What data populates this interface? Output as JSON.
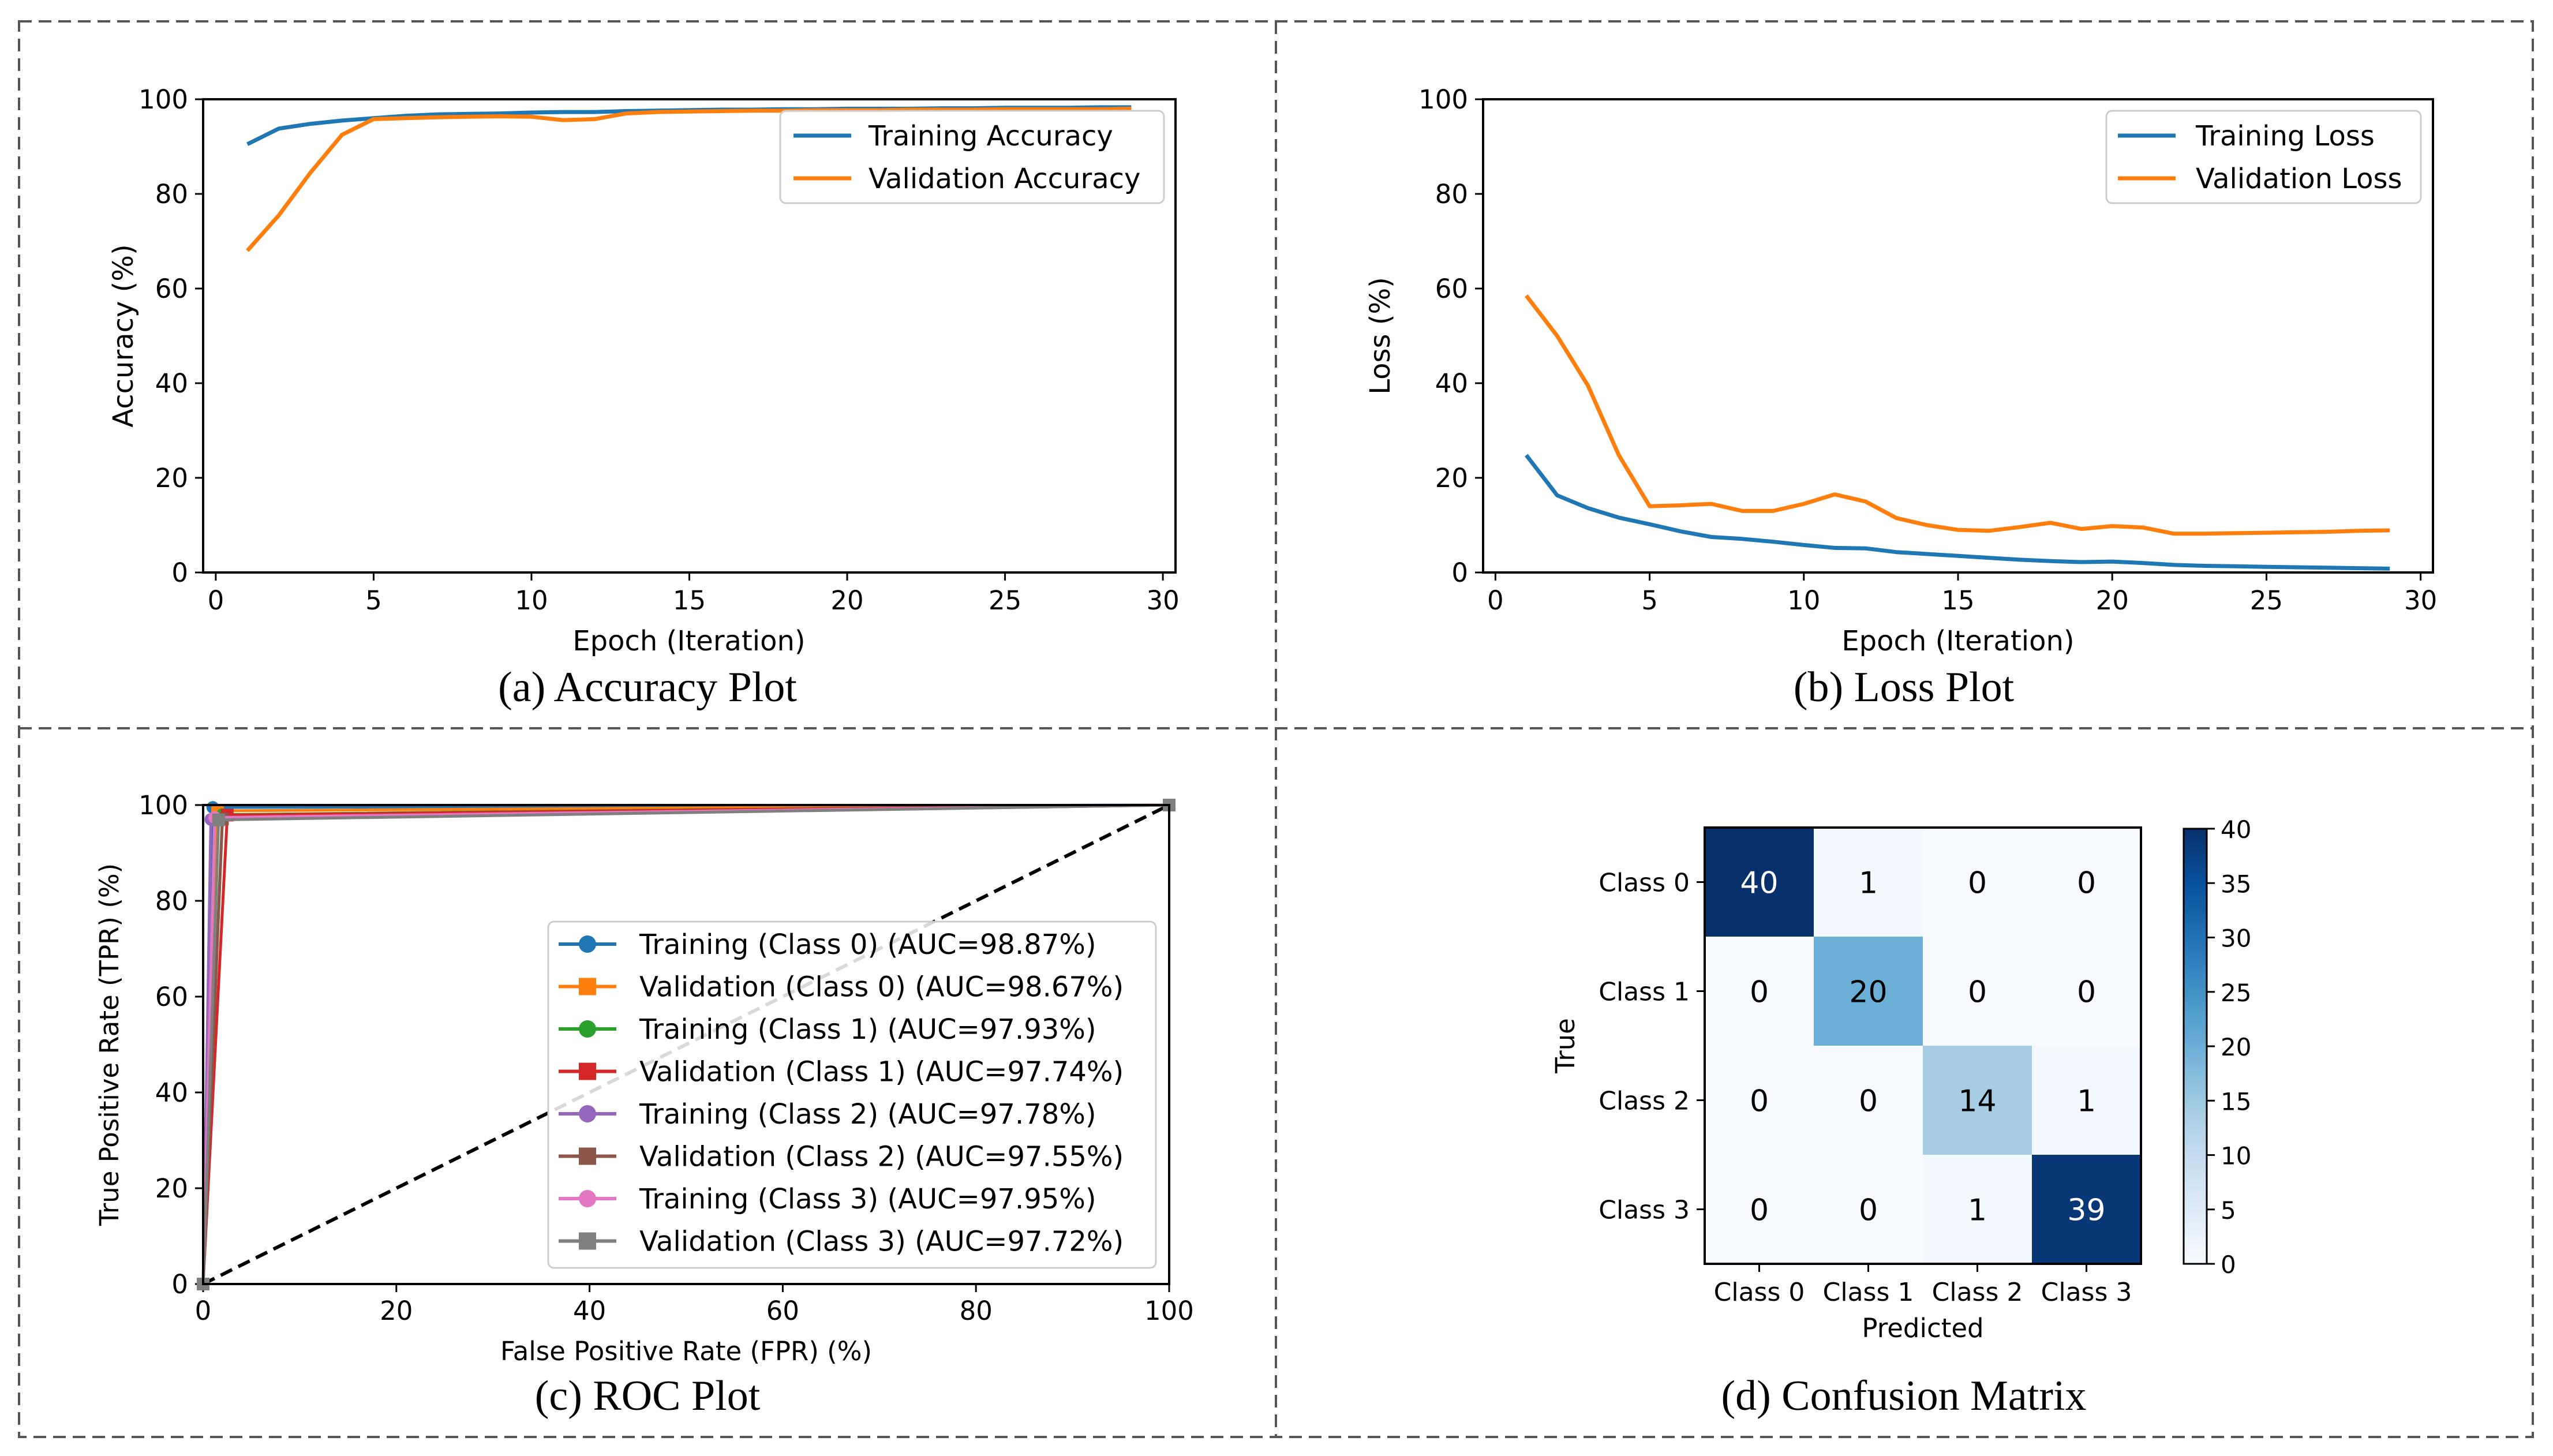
{
  "panels": {
    "a": {
      "caption": "(a) Accuracy Plot"
    },
    "b": {
      "caption": "(b) Loss Plot"
    },
    "c": {
      "caption": "(c) ROC Plot"
    },
    "d": {
      "caption": "(d) Confusion Matrix"
    }
  },
  "colors": {
    "training": "#1f77b4",
    "validation": "#ff7f0e",
    "diagonal": "#000000",
    "panel_border": "#555555"
  },
  "chart_data": [
    {
      "id": "accuracy",
      "type": "line",
      "title": "",
      "xlabel": "Epoch (Iteration)",
      "ylabel": "Accuracy (%)",
      "xlim": [
        -0.4,
        30.4
      ],
      "ylim": [
        0,
        100
      ],
      "xticks": [
        0,
        5,
        10,
        15,
        20,
        25,
        30
      ],
      "yticks": [
        0,
        20,
        40,
        60,
        80,
        100
      ],
      "legend": "top-right",
      "x": [
        1,
        2,
        3,
        4,
        5,
        6,
        7,
        8,
        9,
        10,
        11,
        12,
        13,
        14,
        15,
        16,
        17,
        18,
        19,
        20,
        21,
        22,
        23,
        24,
        25,
        26,
        27,
        28,
        29
      ],
      "series": [
        {
          "name": "Training Accuracy",
          "color": "#1f77b4",
          "values": [
            90.5,
            93.8,
            94.8,
            95.5,
            96.0,
            96.5,
            96.8,
            96.9,
            97.0,
            97.2,
            97.3,
            97.3,
            97.5,
            97.6,
            97.7,
            97.8,
            97.8,
            97.9,
            97.9,
            98.0,
            98.0,
            98.0,
            98.1,
            98.1,
            98.2,
            98.2,
            98.2,
            98.3,
            98.3
          ]
        },
        {
          "name": "Validation Accuracy",
          "color": "#ff7f0e",
          "values": [
            68.0,
            75.5,
            84.5,
            92.5,
            95.8,
            96.0,
            96.2,
            96.3,
            96.4,
            96.3,
            95.6,
            95.8,
            97.0,
            97.3,
            97.4,
            97.5,
            97.6,
            97.6,
            97.7,
            97.7,
            97.7,
            97.8,
            97.8,
            97.8,
            97.9,
            97.9,
            97.9,
            97.9,
            98.0
          ]
        }
      ]
    },
    {
      "id": "loss",
      "type": "line",
      "title": "",
      "xlabel": "Epoch (Iteration)",
      "ylabel": "Loss (%)",
      "xlim": [
        -0.4,
        30.4
      ],
      "ylim": [
        0,
        100
      ],
      "xticks": [
        0,
        5,
        10,
        15,
        20,
        25,
        30
      ],
      "yticks": [
        0,
        20,
        40,
        60,
        80,
        100
      ],
      "legend": "top-right",
      "x": [
        1,
        2,
        3,
        4,
        5,
        6,
        7,
        8,
        9,
        10,
        11,
        12,
        13,
        14,
        15,
        16,
        17,
        18,
        19,
        20,
        21,
        22,
        23,
        24,
        25,
        26,
        27,
        28,
        29
      ],
      "series": [
        {
          "name": "Training Loss",
          "color": "#1f77b4",
          "values": [
            24.8,
            16.3,
            13.6,
            11.6,
            10.2,
            8.7,
            7.5,
            7.1,
            6.5,
            5.8,
            5.2,
            5.1,
            4.3,
            3.9,
            3.5,
            3.1,
            2.7,
            2.4,
            2.2,
            2.3,
            2.0,
            1.6,
            1.4,
            1.3,
            1.2,
            1.1,
            1.0,
            0.9,
            0.8
          ]
        },
        {
          "name": "Validation Loss",
          "color": "#ff7f0e",
          "values": [
            58.5,
            50.0,
            39.5,
            24.8,
            14.0,
            14.2,
            14.5,
            13.0,
            13.0,
            14.5,
            16.5,
            15.0,
            11.5,
            10.0,
            9.0,
            8.8,
            9.6,
            10.5,
            9.2,
            9.8,
            9.5,
            8.2,
            8.2,
            8.3,
            8.4,
            8.5,
            8.6,
            8.8,
            8.9
          ]
        }
      ]
    },
    {
      "id": "roc",
      "type": "line",
      "title": "",
      "xlabel": "False Positive Rate (FPR) (%)",
      "ylabel": "True Positive Rate (TPR) (%)",
      "xlim": [
        0,
        100
      ],
      "ylim": [
        0,
        100
      ],
      "xticks": [
        0,
        20,
        40,
        60,
        80,
        100
      ],
      "yticks": [
        0,
        20,
        40,
        60,
        80,
        100
      ],
      "legend": "lower-right",
      "diagonal": {
        "x": [
          0,
          100
        ],
        "y": [
          0,
          100
        ],
        "style": "dashed"
      },
      "series": [
        {
          "name": "Training (Class 0) (AUC=98.87%)",
          "color": "#1f77b4",
          "marker": "circle",
          "x": [
            0,
            1.0,
            100
          ],
          "y": [
            0,
            99.5,
            100
          ]
        },
        {
          "name": "Validation (Class 0) (AUC=98.67%)",
          "color": "#ff7f0e",
          "marker": "square",
          "x": [
            0,
            1.5,
            100
          ],
          "y": [
            0,
            98.8,
            100
          ]
        },
        {
          "name": "Training (Class 1) (AUC=97.93%)",
          "color": "#2ca02c",
          "marker": "circle",
          "x": [
            0,
            2.0,
            100
          ],
          "y": [
            0,
            98.0,
            100
          ]
        },
        {
          "name": "Validation (Class 1) (AUC=97.74%)",
          "color": "#d62728",
          "marker": "square",
          "x": [
            0,
            2.5,
            100
          ],
          "y": [
            0,
            97.9,
            100
          ]
        },
        {
          "name": "Training (Class 2) (AUC=97.78%)",
          "color": "#9467bd",
          "marker": "circle",
          "x": [
            0,
            0.8,
            100
          ],
          "y": [
            0,
            97.0,
            100
          ]
        },
        {
          "name": "Validation (Class 2) (AUC=97.55%)",
          "color": "#8c564b",
          "marker": "square",
          "x": [
            0,
            2.0,
            100
          ],
          "y": [
            0,
            97.1,
            100
          ]
        },
        {
          "name": "Training (Class 3) (AUC=97.95%)",
          "color": "#e377c2",
          "marker": "circle",
          "x": [
            0,
            1.2,
            100
          ],
          "y": [
            0,
            97.4,
            100
          ]
        },
        {
          "name": "Validation (Class 3) (AUC=97.72%)",
          "color": "#7f7f7f",
          "marker": "square",
          "x": [
            0,
            1.6,
            100
          ],
          "y": [
            0,
            96.9,
            100
          ]
        }
      ]
    },
    {
      "id": "confusion",
      "type": "heatmap",
      "title": "",
      "xlabel": "Predicted",
      "ylabel": "True",
      "x_categories": [
        "Class 0",
        "Class 1",
        "Class 2",
        "Class 3"
      ],
      "y_categories": [
        "Class 0",
        "Class 1",
        "Class 2",
        "Class 3"
      ],
      "values": [
        [
          40,
          1,
          0,
          0
        ],
        [
          0,
          20,
          0,
          0
        ],
        [
          0,
          0,
          14,
          1
        ],
        [
          0,
          0,
          1,
          39
        ]
      ],
      "colormap": "Blues",
      "colorbar": {
        "min": 0,
        "max": 40,
        "ticks": [
          0,
          5,
          10,
          15,
          20,
          25,
          30,
          35,
          40
        ]
      }
    }
  ]
}
